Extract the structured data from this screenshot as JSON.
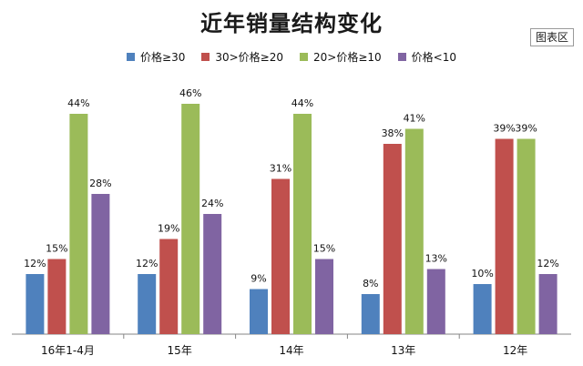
{
  "chart_area_label": "图表区",
  "chart_data": {
    "type": "bar",
    "title": "近年销量结构变化",
    "categories": [
      "16年1-4月",
      "15年",
      "14年",
      "13年",
      "12年"
    ],
    "series": [
      {
        "name": "价格≥30",
        "color": "#4f81bd",
        "values": [
          12,
          12,
          9,
          8,
          10
        ],
        "labels": [
          "12%",
          "12%",
          "9%",
          "8%",
          "10%"
        ]
      },
      {
        "name": "30>价格≥20",
        "color": "#c0504d",
        "values": [
          15,
          19,
          31,
          38,
          39
        ],
        "labels": [
          "15%",
          "19%",
          "31%",
          "38%",
          "39%"
        ]
      },
      {
        "name": "20>价格≥10",
        "color": "#9bbb59",
        "values": [
          44,
          46,
          44,
          41,
          39
        ],
        "labels": [
          "44%",
          "46%",
          "44%",
          "41%",
          "39%"
        ]
      },
      {
        "name": "价格<10",
        "color": "#8064a2",
        "values": [
          28,
          24,
          15,
          13,
          12
        ],
        "labels": [
          "28%",
          "24%",
          "15%",
          "13%",
          "12%"
        ]
      }
    ],
    "ylim": [
      0,
      50
    ],
    "grid": false,
    "legend_position": "top"
  }
}
